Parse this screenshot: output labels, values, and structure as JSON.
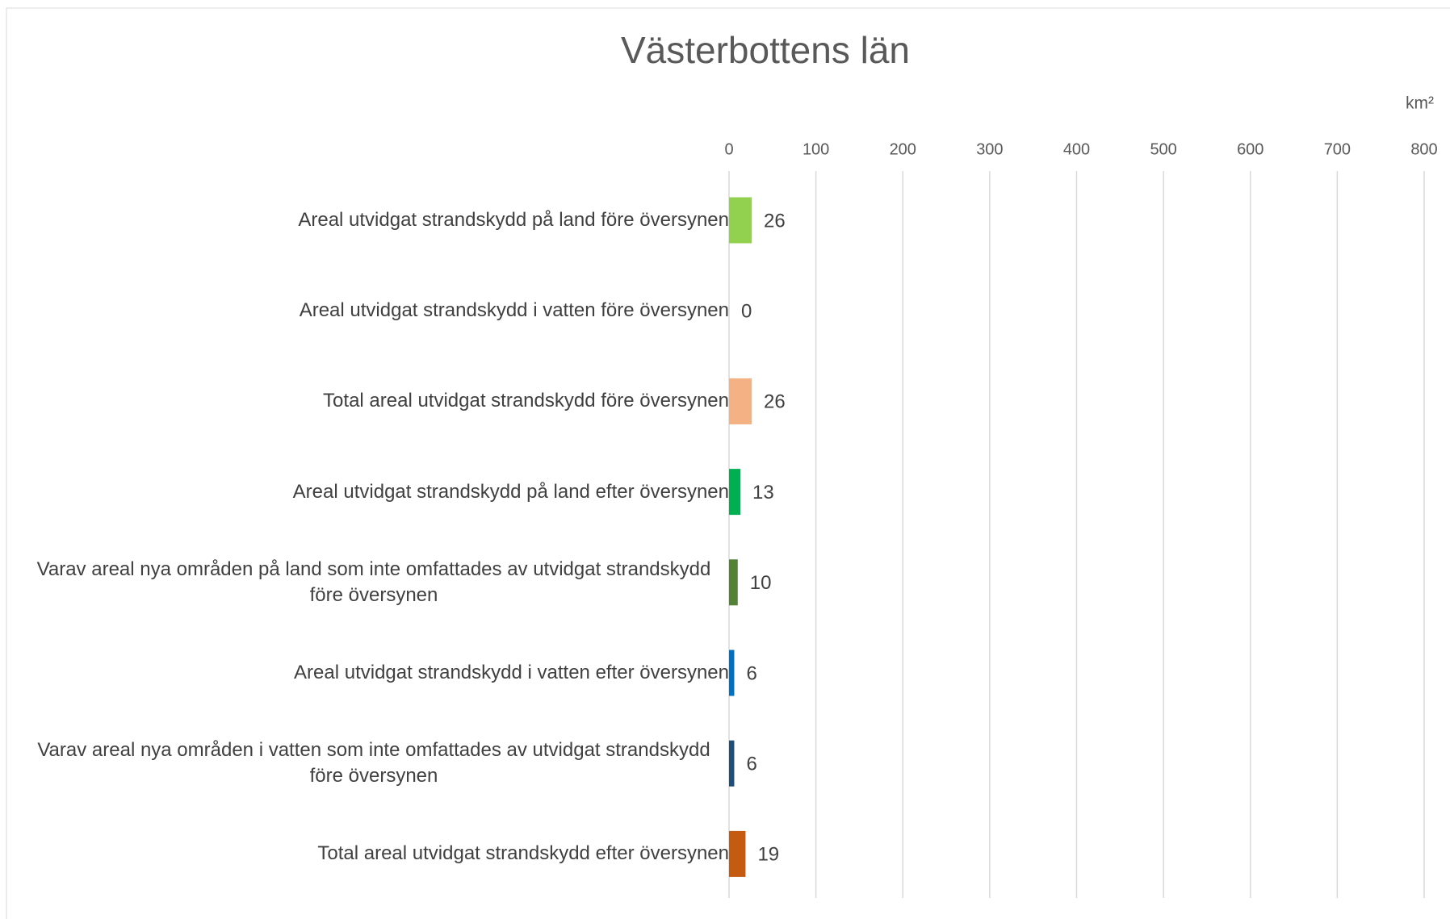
{
  "chart_data": {
    "type": "hbar",
    "title": "Västerbottens län",
    "x_axis_label": "km²",
    "categories": [
      "Areal utvidgat strandskydd på land före översynen",
      "Areal utvidgat strandskydd i vatten före översynen",
      "Total areal utvidgat strandskydd före översynen",
      "Areal utvidgat strandskydd på land efter översynen",
      "Varav areal nya områden på land som inte omfattades av utvidgat strandskydd före översynen",
      "Areal utvidgat strandskydd i vatten efter översynen",
      "Varav areal nya områden i vatten som inte omfattades av utvidgat strandskydd före översynen",
      "Total areal utvidgat strandskydd efter översynen"
    ],
    "values": [
      26,
      0,
      26,
      13,
      10,
      6,
      6,
      19
    ],
    "colors": [
      "#92d050",
      "#5b9bd5",
      "#f4b183",
      "#00b050",
      "#548235",
      "#0070c0",
      "#1f4e79",
      "#c55a11"
    ],
    "xlim": [
      0,
      800
    ],
    "xticks": [
      0,
      100,
      200,
      300,
      400,
      500,
      600,
      700,
      800
    ],
    "grid": true
  }
}
